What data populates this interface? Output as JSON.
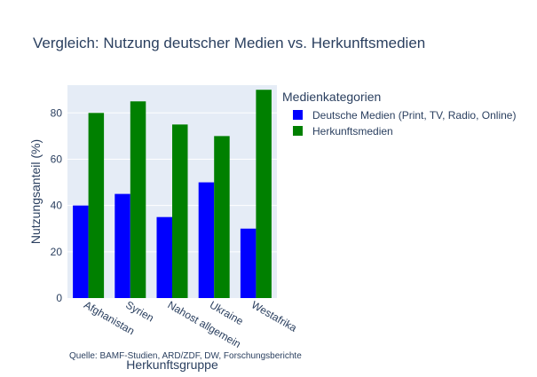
{
  "chart_data": {
    "type": "bar",
    "title": "Vergleich: Nutzung deutscher Medien vs. Herkunftsmedien",
    "xlabel": "Herkunftsgruppe",
    "ylabel": "Nutzungsanteil (%)",
    "categories": [
      "Afghanistan",
      "Syrien",
      "Nahost allgemein",
      "Ukraine",
      "Westafrika"
    ],
    "series": [
      {
        "name": "Deutsche Medien (Print, TV, Radio, Online)",
        "values": [
          40,
          45,
          35,
          50,
          30
        ],
        "color": "#0000ff"
      },
      {
        "name": "Herkunftsmedien",
        "values": [
          80,
          85,
          75,
          70,
          90
        ],
        "color": "#008000"
      }
    ],
    "ylim": [
      0,
      92
    ],
    "yticks": [
      0,
      20,
      40,
      60,
      80
    ],
    "grid": true,
    "legend": {
      "title": "Medienkategorien",
      "placement": "top-right"
    },
    "annotation": "Quelle: BAMF-Studien, ARD/ZDF, DW, Forschungsberichte",
    "plot_bgcolor": "#e5ecf6"
  }
}
